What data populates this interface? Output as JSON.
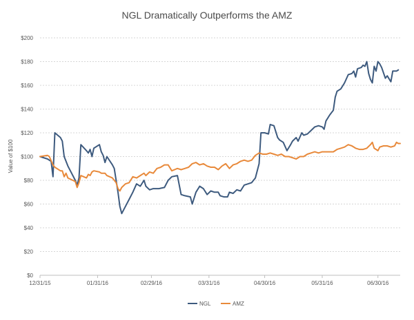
{
  "chart_data": {
    "type": "line",
    "title": "NGL Dramatically Outperforms the AMZ",
    "xlabel": "",
    "ylabel": "Value of $100",
    "ylim": [
      0,
      200
    ],
    "yticks": [
      0,
      20,
      40,
      60,
      80,
      100,
      120,
      140,
      160,
      180,
      200
    ],
    "ytick_labels": [
      "$0",
      "$20",
      "$40",
      "$60",
      "$80",
      "$100",
      "$120",
      "$140",
      "$160",
      "$180",
      "$200"
    ],
    "xlim": [
      "2015-12-31",
      "2016-07-12"
    ],
    "xticks": [
      "2015-12-31",
      "2016-01-31",
      "2016-02-29",
      "2016-03-31",
      "2016-04-30",
      "2016-05-31",
      "2016-06-30"
    ],
    "xtick_labels": [
      "12/31/15",
      "01/31/16",
      "02/29/16",
      "03/31/16",
      "04/30/16",
      "05/31/16",
      "06/30/16"
    ],
    "grid": true,
    "legend_position": "bottom",
    "series": [
      {
        "name": "NGL",
        "color": "#3d5a7e",
        "points": [
          [
            "2015-12-31",
            100
          ],
          [
            "2016-01-04",
            98
          ],
          [
            "2016-01-06",
            96
          ],
          [
            "2016-01-07",
            83
          ],
          [
            "2016-01-08",
            120
          ],
          [
            "2016-01-11",
            116
          ],
          [
            "2016-01-12",
            113
          ],
          [
            "2016-01-13",
            100
          ],
          [
            "2016-01-15",
            92
          ],
          [
            "2016-01-19",
            80
          ],
          [
            "2016-01-20",
            76
          ],
          [
            "2016-01-21",
            82
          ],
          [
            "2016-01-22",
            110
          ],
          [
            "2016-01-25",
            105
          ],
          [
            "2016-01-26",
            103
          ],
          [
            "2016-01-27",
            106
          ],
          [
            "2016-01-28",
            100
          ],
          [
            "2016-01-29",
            107
          ],
          [
            "2016-02-01",
            110
          ],
          [
            "2016-02-02",
            104
          ],
          [
            "2016-02-03",
            101
          ],
          [
            "2016-02-04",
            95
          ],
          [
            "2016-02-05",
            100
          ],
          [
            "2016-02-08",
            93
          ],
          [
            "2016-02-09",
            90
          ],
          [
            "2016-02-10",
            80
          ],
          [
            "2016-02-11",
            70
          ],
          [
            "2016-02-12",
            58
          ],
          [
            "2016-02-13",
            52
          ],
          [
            "2016-02-15",
            58
          ],
          [
            "2016-02-17",
            64
          ],
          [
            "2016-02-19",
            70
          ],
          [
            "2016-02-21",
            77
          ],
          [
            "2016-02-23",
            75
          ],
          [
            "2016-02-25",
            80
          ],
          [
            "2016-02-26",
            75
          ],
          [
            "2016-02-28",
            72
          ],
          [
            "2016-03-01",
            73
          ],
          [
            "2016-03-04",
            73
          ],
          [
            "2016-03-07",
            74
          ],
          [
            "2016-03-09",
            80
          ],
          [
            "2016-03-11",
            83
          ],
          [
            "2016-03-14",
            84
          ],
          [
            "2016-03-15",
            76
          ],
          [
            "2016-03-16",
            68
          ],
          [
            "2016-03-18",
            67
          ],
          [
            "2016-03-21",
            66
          ],
          [
            "2016-03-22",
            60
          ],
          [
            "2016-03-24",
            70
          ],
          [
            "2016-03-26",
            75
          ],
          [
            "2016-03-28",
            73
          ],
          [
            "2016-03-30",
            68
          ],
          [
            "2016-04-01",
            71
          ],
          [
            "2016-04-03",
            70
          ],
          [
            "2016-04-05",
            70
          ],
          [
            "2016-04-06",
            67
          ],
          [
            "2016-04-08",
            66
          ],
          [
            "2016-04-10",
            66
          ],
          [
            "2016-04-11",
            70
          ],
          [
            "2016-04-13",
            69
          ],
          [
            "2016-04-15",
            72
          ],
          [
            "2016-04-17",
            71
          ],
          [
            "2016-04-19",
            76
          ],
          [
            "2016-04-21",
            77
          ],
          [
            "2016-04-23",
            78
          ],
          [
            "2016-04-25",
            82
          ],
          [
            "2016-04-27",
            94
          ],
          [
            "2016-04-28",
            120
          ],
          [
            "2016-04-30",
            120
          ],
          [
            "2016-05-02",
            119
          ],
          [
            "2016-05-03",
            127
          ],
          [
            "2016-05-05",
            126
          ],
          [
            "2016-05-07",
            116
          ],
          [
            "2016-05-08",
            114
          ],
          [
            "2016-05-10",
            112
          ],
          [
            "2016-05-12",
            105
          ],
          [
            "2016-05-14",
            110
          ],
          [
            "2016-05-15",
            113
          ],
          [
            "2016-05-17",
            116
          ],
          [
            "2016-05-18",
            113
          ],
          [
            "2016-05-20",
            120
          ],
          [
            "2016-05-21",
            118
          ],
          [
            "2016-05-23",
            119
          ],
          [
            "2016-05-25",
            122
          ],
          [
            "2016-05-27",
            125
          ],
          [
            "2016-05-29",
            126
          ],
          [
            "2016-05-31",
            125
          ],
          [
            "2016-06-01",
            123
          ],
          [
            "2016-06-02",
            130
          ],
          [
            "2016-06-04",
            135
          ],
          [
            "2016-06-06",
            139
          ],
          [
            "2016-06-07",
            150
          ],
          [
            "2016-06-08",
            155
          ],
          [
            "2016-06-10",
            157
          ],
          [
            "2016-06-12",
            162
          ],
          [
            "2016-06-14",
            169
          ],
          [
            "2016-06-16",
            170
          ],
          [
            "2016-06-17",
            172
          ],
          [
            "2016-06-18",
            167
          ],
          [
            "2016-06-19",
            174
          ],
          [
            "2016-06-21",
            175
          ],
          [
            "2016-06-22",
            177
          ],
          [
            "2016-06-23",
            176
          ],
          [
            "2016-06-24",
            180
          ],
          [
            "2016-06-25",
            170
          ],
          [
            "2016-06-26",
            165
          ],
          [
            "2016-06-27",
            162
          ],
          [
            "2016-06-28",
            176
          ],
          [
            "2016-06-29",
            172
          ],
          [
            "2016-06-30",
            180
          ],
          [
            "2016-07-01",
            178
          ],
          [
            "2016-07-02",
            175
          ],
          [
            "2016-07-04",
            166
          ],
          [
            "2016-07-05",
            168
          ],
          [
            "2016-07-07",
            163
          ],
          [
            "2016-07-08",
            172
          ],
          [
            "2016-07-10",
            172
          ],
          [
            "2016-07-11",
            173
          ]
        ]
      },
      {
        "name": "AMZ",
        "color": "#e8893a",
        "points": [
          [
            "2015-12-31",
            100
          ],
          [
            "2016-01-04",
            101
          ],
          [
            "2016-01-05",
            100
          ],
          [
            "2016-01-07",
            93
          ],
          [
            "2016-01-08",
            91
          ],
          [
            "2016-01-11",
            88
          ],
          [
            "2016-01-12",
            88
          ],
          [
            "2016-01-13",
            83
          ],
          [
            "2016-01-14",
            86
          ],
          [
            "2016-01-15",
            82
          ],
          [
            "2016-01-19",
            79
          ],
          [
            "2016-01-20",
            74
          ],
          [
            "2016-01-21",
            78
          ],
          [
            "2016-01-22",
            84
          ],
          [
            "2016-01-25",
            82
          ],
          [
            "2016-01-26",
            85
          ],
          [
            "2016-01-27",
            84
          ],
          [
            "2016-01-28",
            87
          ],
          [
            "2016-01-29",
            88
          ],
          [
            "2016-02-01",
            87
          ],
          [
            "2016-02-02",
            86
          ],
          [
            "2016-02-04",
            86
          ],
          [
            "2016-02-05",
            84
          ],
          [
            "2016-02-08",
            82
          ],
          [
            "2016-02-10",
            78
          ],
          [
            "2016-02-11",
            73
          ],
          [
            "2016-02-12",
            71
          ],
          [
            "2016-02-13",
            74
          ],
          [
            "2016-02-15",
            77
          ],
          [
            "2016-02-17",
            78
          ],
          [
            "2016-02-19",
            83
          ],
          [
            "2016-02-21",
            82
          ],
          [
            "2016-02-23",
            84
          ],
          [
            "2016-02-25",
            86
          ],
          [
            "2016-02-26",
            84
          ],
          [
            "2016-02-28",
            87
          ],
          [
            "2016-03-01",
            86
          ],
          [
            "2016-03-03",
            90
          ],
          [
            "2016-03-05",
            91
          ],
          [
            "2016-03-07",
            93
          ],
          [
            "2016-03-09",
            93
          ],
          [
            "2016-03-11",
            88
          ],
          [
            "2016-03-14",
            90
          ],
          [
            "2016-03-16",
            89
          ],
          [
            "2016-03-18",
            90
          ],
          [
            "2016-03-20",
            91
          ],
          [
            "2016-03-22",
            94
          ],
          [
            "2016-03-24",
            95
          ],
          [
            "2016-03-26",
            93
          ],
          [
            "2016-03-28",
            94
          ],
          [
            "2016-03-30",
            92
          ],
          [
            "2016-04-01",
            91
          ],
          [
            "2016-04-03",
            91
          ],
          [
            "2016-04-05",
            89
          ],
          [
            "2016-04-07",
            92
          ],
          [
            "2016-04-09",
            94
          ],
          [
            "2016-04-11",
            90
          ],
          [
            "2016-04-13",
            93
          ],
          [
            "2016-04-15",
            94
          ],
          [
            "2016-04-17",
            96
          ],
          [
            "2016-04-19",
            97
          ],
          [
            "2016-04-21",
            96
          ],
          [
            "2016-04-23",
            97
          ],
          [
            "2016-04-25",
            101
          ],
          [
            "2016-04-27",
            103
          ],
          [
            "2016-04-29",
            102
          ],
          [
            "2016-05-01",
            102
          ],
          [
            "2016-05-03",
            103
          ],
          [
            "2016-05-05",
            102
          ],
          [
            "2016-05-07",
            101
          ],
          [
            "2016-05-09",
            102
          ],
          [
            "2016-05-11",
            100
          ],
          [
            "2016-05-13",
            100
          ],
          [
            "2016-05-15",
            99
          ],
          [
            "2016-05-17",
            98
          ],
          [
            "2016-05-19",
            100
          ],
          [
            "2016-05-21",
            100
          ],
          [
            "2016-05-23",
            102
          ],
          [
            "2016-05-25",
            103
          ],
          [
            "2016-05-27",
            104
          ],
          [
            "2016-05-29",
            103
          ],
          [
            "2016-05-31",
            104
          ],
          [
            "2016-06-02",
            104
          ],
          [
            "2016-06-04",
            104
          ],
          [
            "2016-06-06",
            104
          ],
          [
            "2016-06-08",
            106
          ],
          [
            "2016-06-10",
            107
          ],
          [
            "2016-06-12",
            108
          ],
          [
            "2016-06-14",
            110
          ],
          [
            "2016-06-16",
            109
          ],
          [
            "2016-06-18",
            107
          ],
          [
            "2016-06-20",
            106
          ],
          [
            "2016-06-22",
            106
          ],
          [
            "2016-06-24",
            107
          ],
          [
            "2016-06-26",
            110
          ],
          [
            "2016-06-27",
            112
          ],
          [
            "2016-06-28",
            107
          ],
          [
            "2016-06-30",
            105
          ],
          [
            "2016-07-01",
            108
          ],
          [
            "2016-07-03",
            109
          ],
          [
            "2016-07-05",
            109
          ],
          [
            "2016-07-07",
            108
          ],
          [
            "2016-07-09",
            109
          ],
          [
            "2016-07-10",
            112
          ],
          [
            "2016-07-11",
            111
          ],
          [
            "2016-07-12",
            111
          ]
        ]
      }
    ]
  }
}
